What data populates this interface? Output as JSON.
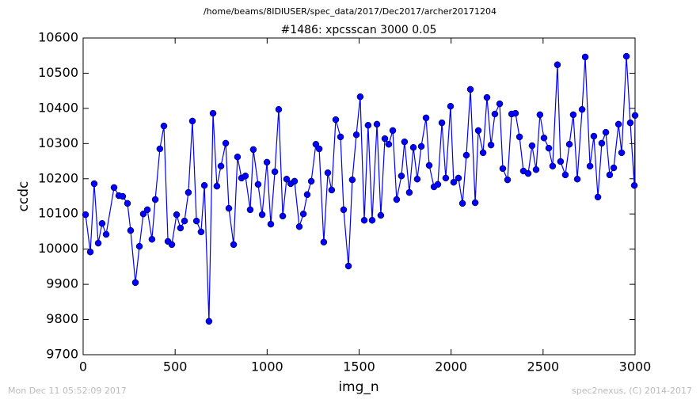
{
  "chart_data": {
    "type": "line",
    "suptitle": "/home/beams/8IDIUSER/spec_data/2017/Dec2017/archer20171204",
    "title": "#1486: xpcsscan 3000 0.05",
    "xlabel": "img_n",
    "ylabel": "ccdc",
    "footer_left": "Mon Dec 11 05:52:09 2017",
    "footer_right": "spec2nexus, (C) 2014-2017",
    "xlim": [
      0,
      3000
    ],
    "xticks": [
      0,
      500,
      1000,
      1500,
      2000,
      2500,
      3000
    ],
    "ylim": [
      9700,
      10600
    ],
    "yticks": [
      9700,
      9800,
      9900,
      10000,
      10100,
      10200,
      10300,
      10400,
      10500,
      10600
    ],
    "x": [
      13,
      39,
      60,
      82,
      103,
      125,
      168,
      194,
      215,
      241,
      258,
      284,
      306,
      327,
      349,
      374,
      392,
      417,
      439,
      461,
      482,
      508,
      529,
      551,
      572,
      594,
      616,
      641,
      659,
      684,
      706,
      727,
      749,
      775,
      792,
      818,
      839,
      861,
      882,
      908,
      925,
      951,
      973,
      999,
      1020,
      1042,
      1063,
      1085,
      1106,
      1128,
      1149,
      1175,
      1197,
      1218,
      1240,
      1265,
      1283,
      1308,
      1330,
      1351,
      1373,
      1399,
      1416,
      1442,
      1463,
      1485,
      1506,
      1528,
      1549,
      1571,
      1597,
      1618,
      1640,
      1661,
      1683,
      1704,
      1730,
      1747,
      1773,
      1795,
      1816,
      1838,
      1864,
      1881,
      1907,
      1928,
      1950,
      1971,
      1997,
      2014,
      2040,
      2062,
      2083,
      2105,
      2131,
      2148,
      2174,
      2195,
      2217,
      2238,
      2264,
      2281,
      2307,
      2329,
      2350,
      2372,
      2393,
      2419,
      2440,
      2462,
      2483,
      2505,
      2531,
      2552,
      2578,
      2595,
      2621,
      2643,
      2664,
      2686,
      2712,
      2729,
      2755,
      2776,
      2798,
      2819,
      2841,
      2862,
      2884,
      2910,
      2927,
      2953,
      2974,
      2996,
      3000
    ],
    "series": [
      {
        "color": "#0000ff",
        "values": [
          10098,
          9992,
          10186,
          10017,
          10073,
          10042,
          10175,
          10152,
          10150,
          10130,
          10053,
          9905,
          10008,
          10100,
          10112,
          10028,
          10141,
          10285,
          10350,
          10022,
          10013,
          10098,
          10060,
          10080,
          10161,
          10364,
          10080,
          10049,
          10181,
          9795,
          10386,
          10179,
          10236,
          10301,
          10116,
          10013,
          10262,
          10202,
          10208,
          10112,
          10283,
          10184,
          10098,
          10247,
          10071,
          10220,
          10397,
          10094,
          10199,
          10186,
          10193,
          10064,
          10100,
          10155,
          10193,
          10298,
          10285,
          10020,
          10217,
          10168,
          10368,
          10319,
          10112,
          9952,
          10197,
          10325,
          10433,
          10082,
          10352,
          10082,
          10355,
          10096,
          10314,
          10298,
          10337,
          10141,
          10208,
          10305,
          10161,
          10289,
          10199,
          10292,
          10373,
          10238,
          10177,
          10184,
          10359,
          10202,
          10406,
          10190,
          10202,
          10130,
          10267,
          10454,
          10132,
          10337,
          10274,
          10431,
          10296,
          10384,
          10413,
          10229,
          10197,
          10384,
          10386,
          10319,
          10222,
          10215,
          10294,
          10226,
          10382,
          10316,
          10287,
          10236,
          10524,
          10249,
          10211,
          10298,
          10382,
          10199,
          10397,
          10546,
          10236,
          10321,
          10148,
          10301,
          10332,
          10211,
          10231,
          10355,
          10274,
          10548,
          10359,
          10181,
          10380
        ]
      }
    ]
  }
}
